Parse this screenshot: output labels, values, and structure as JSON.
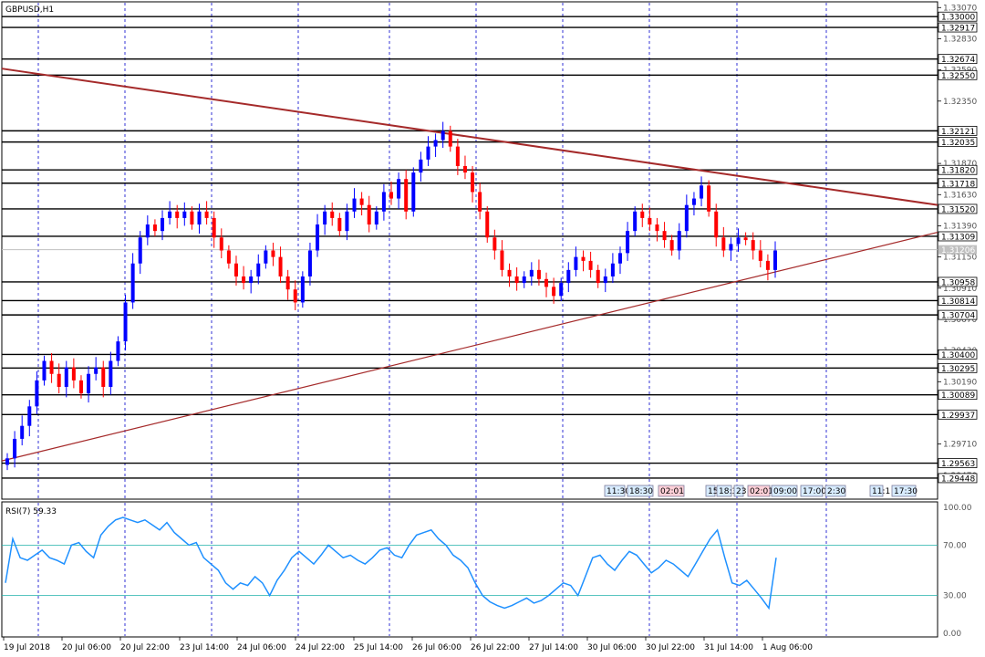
{
  "chart_data": [
    {
      "type": "candlestick",
      "symbol_label": "GBPUSD,H1",
      "ylim": [
        1.293,
        1.331
      ],
      "price_ticks": [
        "1.33070",
        "1.32830",
        "1.32590",
        "1.32350",
        "1.32110",
        "1.31870",
        "1.31630",
        "1.31390",
        "1.31150",
        "1.30910",
        "1.30670",
        "1.30430",
        "1.30190",
        "1.29950",
        "1.29710",
        "1.29470"
      ],
      "levels": [
        {
          "value": 1.33,
          "label": "1.33000"
        },
        {
          "value": 1.32917,
          "label": "1.32917"
        },
        {
          "value": 1.32674,
          "label": "1.32674"
        },
        {
          "value": 1.3255,
          "label": "1.32550"
        },
        {
          "value": 1.32121,
          "label": "1.32121"
        },
        {
          "value": 1.32035,
          "label": "1.32035"
        },
        {
          "value": 1.3182,
          "label": "1.31820"
        },
        {
          "value": 1.31718,
          "label": "1.31718"
        },
        {
          "value": 1.3152,
          "label": "1.31520"
        },
        {
          "value": 1.31309,
          "label": "1.31309"
        },
        {
          "value": 1.30958,
          "label": "1.30958"
        },
        {
          "value": 1.30814,
          "label": "1.30814"
        },
        {
          "value": 1.30704,
          "label": "1.30704"
        },
        {
          "value": 1.304,
          "label": "1.30400"
        },
        {
          "value": 1.30295,
          "label": "1.30295"
        },
        {
          "value": 1.30089,
          "label": "1.30089"
        },
        {
          "value": 1.29937,
          "label": "1.29937"
        },
        {
          "value": 1.29563,
          "label": "1.29563"
        },
        {
          "value": 1.29448,
          "label": "1.29448"
        }
      ],
      "current_price": {
        "value": 1.31206,
        "label": "1.31206"
      },
      "trendlines": [
        {
          "name": "resistance",
          "from": [
            0,
            1.326
          ],
          "to": [
            200,
            1.3155
          ],
          "color": "#a52a2a"
        },
        {
          "name": "support",
          "from": [
            0,
            1.2958
          ],
          "to": [
            200,
            1.3134
          ],
          "color": "#a52a2a"
        }
      ],
      "closes": [
        1.296,
        1.2975,
        1.2985,
        1.3,
        1.302,
        1.3035,
        1.3025,
        1.3015,
        1.303,
        1.302,
        1.301,
        1.3025,
        1.303,
        1.3015,
        1.3035,
        1.305,
        1.308,
        1.311,
        1.313,
        1.314,
        1.3135,
        1.3145,
        1.315,
        1.3145,
        1.315,
        1.314,
        1.315,
        1.3145,
        1.313,
        1.312,
        1.311,
        1.31,
        1.3095,
        1.31,
        1.311,
        1.312,
        1.3115,
        1.31,
        1.309,
        1.308,
        1.31,
        1.312,
        1.314,
        1.315,
        1.3145,
        1.3135,
        1.315,
        1.316,
        1.3155,
        1.314,
        1.315,
        1.3165,
        1.316,
        1.3175,
        1.315,
        1.318,
        1.319,
        1.32,
        1.3205,
        1.3212,
        1.32,
        1.3185,
        1.318,
        1.3165,
        1.315,
        1.313,
        1.312,
        1.3105,
        1.31,
        1.3095,
        1.31,
        1.3105,
        1.3098,
        1.3092,
        1.3085,
        1.3095,
        1.3105,
        1.3115,
        1.3112,
        1.3105,
        1.3095,
        1.31,
        1.311,
        1.3118,
        1.3135,
        1.315,
        1.3145,
        1.314,
        1.3135,
        1.3128,
        1.312,
        1.3135,
        1.3155,
        1.316,
        1.317,
        1.315,
        1.313,
        1.312,
        1.3125,
        1.313,
        1.3128,
        1.312,
        1.3112,
        1.3105,
        1.312
      ],
      "time_labels": [
        "19 Jul 2018",
        "20 Jul 06:00",
        "20 Jul 22:00",
        "23 Jul 14:00",
        "24 Jul 06:00",
        "24 Jul 22:00",
        "25 Jul 14:00",
        "26 Jul 06:00",
        "26 Jul 22:00",
        "27 Jul 14:00",
        "30 Jul 06:00",
        "30 Jul 22:00",
        "31 Jul 14:00",
        "1 Aug 06:00"
      ],
      "time_boxes": [
        "11:30",
        "18:30",
        "02:01",
        "15",
        "18:3",
        "23",
        "02:01",
        "09:00",
        "17:00",
        "2:30",
        "11:1",
        "17:30"
      ]
    },
    {
      "type": "line",
      "indicator_label": "RSI(7) 59.33",
      "ylim": [
        0,
        100
      ],
      "ticks": [
        "100.00",
        "70.00",
        "30.00",
        "0.00"
      ],
      "levels": [
        70,
        30
      ],
      "values": [
        40,
        75,
        60,
        58,
        62,
        66,
        60,
        58,
        55,
        70,
        72,
        65,
        60,
        78,
        85,
        90,
        92,
        90,
        88,
        90,
        86,
        82,
        88,
        80,
        75,
        70,
        72,
        60,
        55,
        50,
        40,
        35,
        40,
        38,
        45,
        40,
        30,
        42,
        50,
        60,
        65,
        60,
        55,
        62,
        70,
        65,
        60,
        62,
        58,
        55,
        60,
        66,
        68,
        62,
        60,
        70,
        78,
        80,
        82,
        75,
        70,
        62,
        58,
        52,
        40,
        30,
        25,
        22,
        20,
        22,
        25,
        28,
        24,
        26,
        30,
        35,
        40,
        38,
        30,
        45,
        60,
        62,
        55,
        50,
        58,
        65,
        62,
        55,
        48,
        52,
        58,
        55,
        50,
        45,
        55,
        65,
        75,
        82,
        60,
        40,
        38,
        42,
        35,
        28,
        20,
        60
      ]
    }
  ]
}
